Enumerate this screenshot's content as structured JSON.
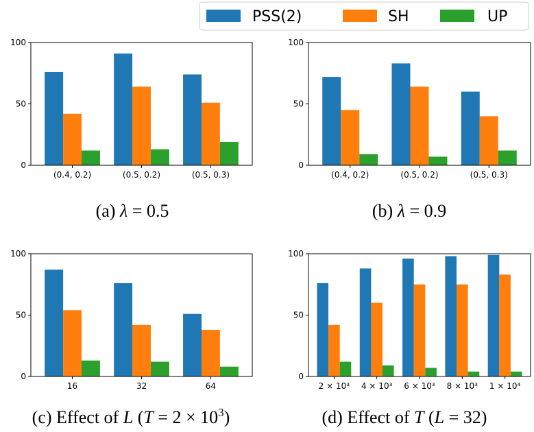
{
  "legend": {
    "placement": "top-right",
    "entries": [
      {
        "label": "PSS(2)",
        "color": "#1f77b4"
      },
      {
        "label": "SH",
        "color": "#ff7f0e"
      },
      {
        "label": "UP",
        "color": "#2ca02c"
      }
    ]
  },
  "chart_data": [
    {
      "type": "bar",
      "caption": "(a) λ = 0.5",
      "categories": [
        "(0.4, 0.2)",
        "(0.5, 0.2)",
        "(0.5, 0.3)"
      ],
      "series": [
        {
          "name": "PSS(2)",
          "values": [
            76,
            91,
            74
          ]
        },
        {
          "name": "SH",
          "values": [
            42,
            64,
            51
          ]
        },
        {
          "name": "UP",
          "values": [
            12,
            13,
            19
          ]
        }
      ],
      "ylim": [
        0,
        100
      ],
      "yticks": [
        0,
        50,
        100
      ],
      "grid": false
    },
    {
      "type": "bar",
      "caption": "(b) λ = 0.9",
      "categories": [
        "(0.4, 0.2)",
        "(0.5, 0.2)",
        "(0.5, 0.3)"
      ],
      "series": [
        {
          "name": "PSS(2)",
          "values": [
            72,
            83,
            60
          ]
        },
        {
          "name": "SH",
          "values": [
            45,
            64,
            40
          ]
        },
        {
          "name": "UP",
          "values": [
            9,
            7,
            12
          ]
        }
      ],
      "ylim": [
        0,
        100
      ],
      "yticks": [
        0,
        50,
        100
      ],
      "grid": false
    },
    {
      "type": "bar",
      "caption": "(c) Effect of L (T = 2 × 10³)",
      "categories": [
        "16",
        "32",
        "64"
      ],
      "series": [
        {
          "name": "PSS(2)",
          "values": [
            87,
            76,
            51
          ]
        },
        {
          "name": "SH",
          "values": [
            54,
            42,
            38
          ]
        },
        {
          "name": "UP",
          "values": [
            13,
            12,
            8
          ]
        }
      ],
      "ylim": [
        0,
        100
      ],
      "yticks": [
        0,
        50,
        100
      ],
      "grid": false
    },
    {
      "type": "bar",
      "caption": "(d) Effect of T (L = 32)",
      "categories": [
        "2 × 10³",
        "4 × 10³",
        "6 × 10³",
        "8 × 10³",
        "1 × 10⁴"
      ],
      "series": [
        {
          "name": "PSS(2)",
          "values": [
            76,
            88,
            96,
            98,
            99
          ]
        },
        {
          "name": "SH",
          "values": [
            42,
            60,
            75,
            75,
            83
          ]
        },
        {
          "name": "UP",
          "values": [
            12,
            9,
            7,
            4,
            4
          ]
        }
      ],
      "ylim": [
        0,
        100
      ],
      "yticks": [
        0,
        50,
        100
      ],
      "grid": false
    }
  ]
}
